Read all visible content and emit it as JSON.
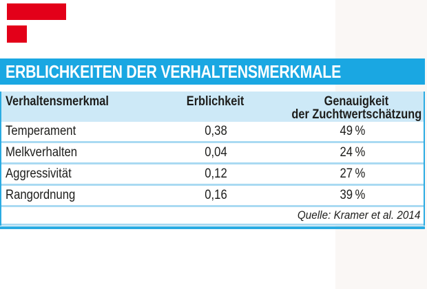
{
  "colors": {
    "brand_cyan": "#1aa7e2",
    "table_border_cyan": "#2aabe2",
    "header_row_bg": "#cde9f7",
    "row_separator": "#a9daf2",
    "logo_red": "#e30019",
    "title_text": "#ffffff",
    "body_text": "#1d1d1b",
    "right_band_bg": "#faf7f5"
  },
  "table": {
    "title": "ERBLICHKEITEN DER VERHALTENSMERKMALE",
    "headers": {
      "col1": "Verhaltensmerkmal",
      "col2": "Erblichkeit",
      "col3_line1": "Genauigkeit",
      "col3_line2": "der Zuchtwertschätzung"
    },
    "rows": [
      {
        "name": "Temperament",
        "value": "0,38",
        "accuracy": "49 %"
      },
      {
        "name": "Melkverhalten",
        "value": "0,04",
        "accuracy": "24 %"
      },
      {
        "name": "Aggressivität",
        "value": "0,12",
        "accuracy": "27 %"
      },
      {
        "name": "Rangordnung",
        "value": "0,16",
        "accuracy": "39 %"
      }
    ],
    "source": "Quelle: Kramer et al. 2014"
  },
  "chart_data": {
    "type": "table",
    "title": "ERBLICHKEITEN DER VERHALTENSMERKMALE",
    "columns": [
      "Verhaltensmerkmal",
      "Erblichkeit",
      "Genauigkeit der Zuchtwertschätzung"
    ],
    "rows": [
      {
        "verhaltensmerkmal": "Temperament",
        "erblichkeit": 0.38,
        "genauigkeit_prozent": 49
      },
      {
        "verhaltensmerkmal": "Melkverhalten",
        "erblichkeit": 0.04,
        "genauigkeit_prozent": 24
      },
      {
        "verhaltensmerkmal": "Aggressivität",
        "erblichkeit": 0.12,
        "genauigkeit_prozent": 27
      },
      {
        "verhaltensmerkmal": "Rangordnung",
        "erblichkeit": 0.16,
        "genauigkeit_prozent": 39
      }
    ],
    "source": "Quelle: Kramer et al. 2014"
  }
}
